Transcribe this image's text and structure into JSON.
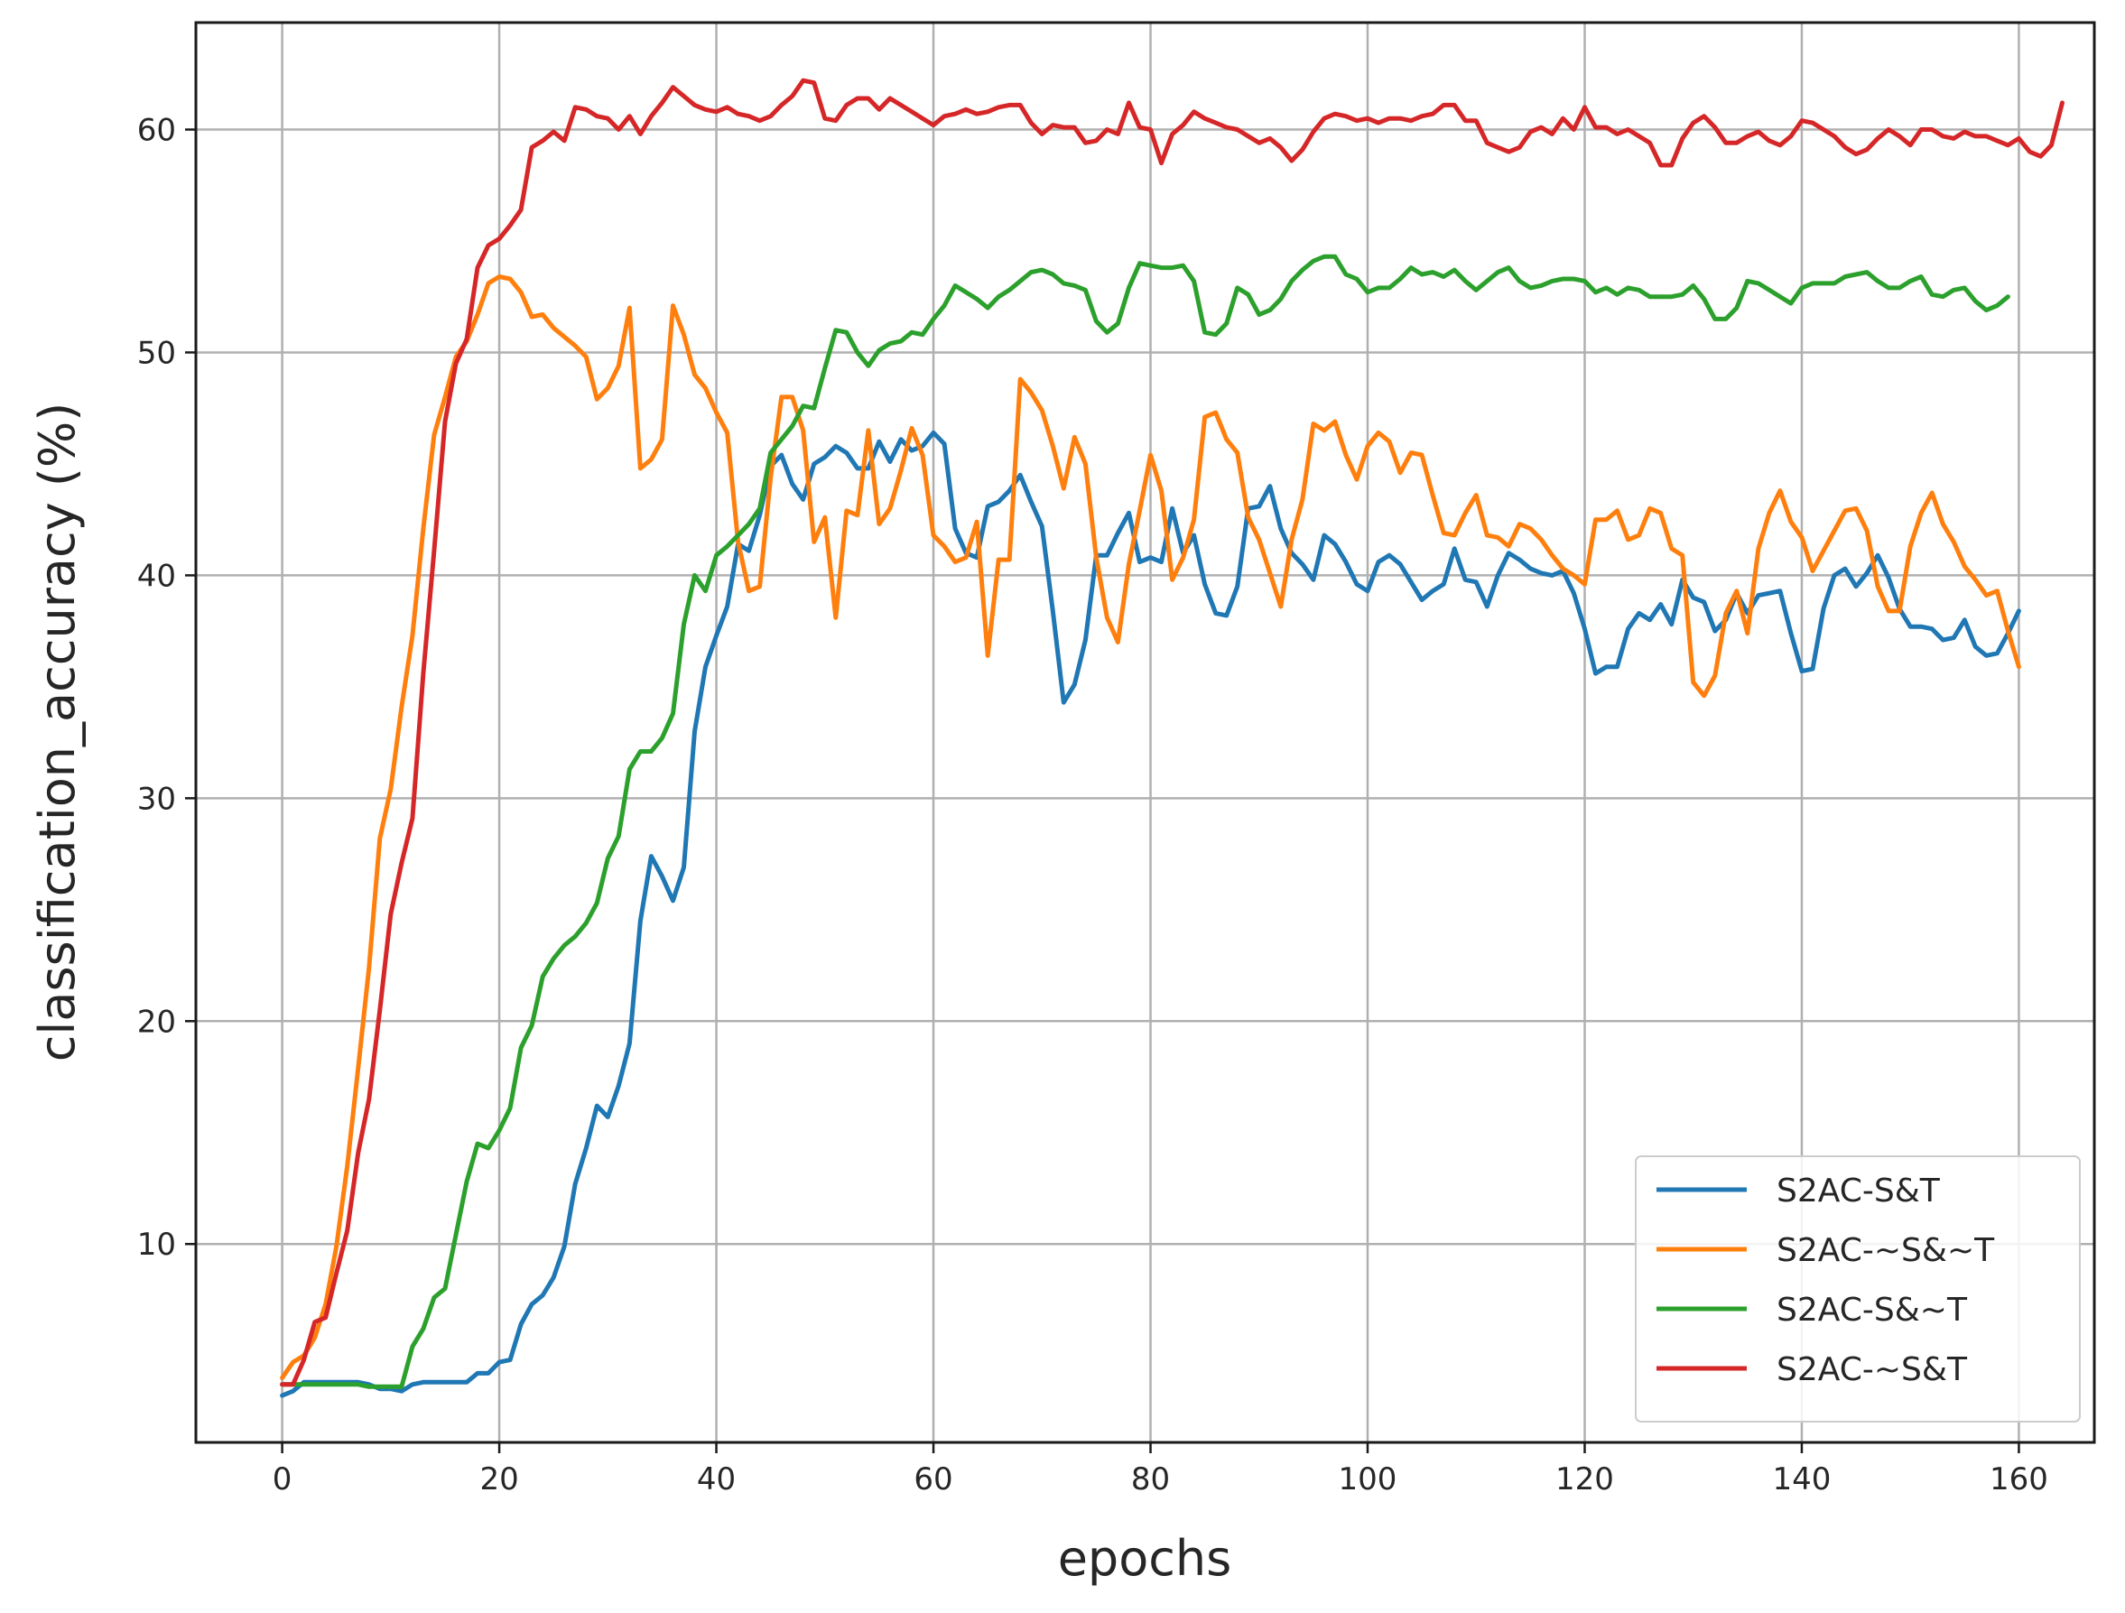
{
  "chart_data": {
    "type": "line",
    "title": "",
    "xlabel": "epochs",
    "ylabel": "classification_accuracy (%)",
    "xlim": [
      -7.95,
      166.95
    ],
    "ylim": [
      1.1,
      64.8
    ],
    "xticks": [
      0,
      20,
      40,
      60,
      80,
      100,
      120,
      140,
      160
    ],
    "yticks": [
      10,
      20,
      30,
      40,
      50,
      60
    ],
    "grid": true,
    "legend_position": "lower-right",
    "series": [
      {
        "name": "S2AC-S&T",
        "color": "#1f77b4",
        "values": [
          3.2,
          3.4,
          3.8,
          3.8,
          3.8,
          3.8,
          3.8,
          3.8,
          3.7,
          3.5,
          3.5,
          3.4,
          3.7,
          3.8,
          3.8,
          3.8,
          3.8,
          3.8,
          4.2,
          4.2,
          4.7,
          4.8,
          6.4,
          7.3,
          7.7,
          8.5,
          9.9,
          12.7,
          14.3,
          16.2,
          15.7,
          17.1,
          19.0,
          24.5,
          27.4,
          26.5,
          25.4,
          26.9,
          33.0,
          35.9,
          37.3,
          38.6,
          41.4,
          41.1,
          42.7,
          44.9,
          45.4,
          44.1,
          43.4,
          45.0,
          45.3,
          45.8,
          45.5,
          44.8,
          44.8,
          46.0,
          45.1,
          46.1,
          45.6,
          45.8,
          46.4,
          45.9,
          42.1,
          41.0,
          40.8,
          43.1,
          43.3,
          43.8,
          44.5,
          43.3,
          42.2,
          38.4,
          34.3,
          35.1,
          37.1,
          40.9,
          40.9,
          41.9,
          42.8,
          40.6,
          40.8,
          40.6,
          43.0,
          41.0,
          41.8,
          39.6,
          38.3,
          38.2,
          39.5,
          43.0,
          43.1,
          44.0,
          42.1,
          41.0,
          40.5,
          39.8,
          41.8,
          41.4,
          40.6,
          39.6,
          39.3,
          40.6,
          40.9,
          40.5,
          39.7,
          38.9,
          39.3,
          39.6,
          41.2,
          39.8,
          39.7,
          38.6,
          40.0,
          41.0,
          40.7,
          40.3,
          40.1,
          40.0,
          40.2,
          39.2,
          37.6,
          35.6,
          35.9,
          35.9,
          37.6,
          38.3,
          38.0,
          38.7,
          37.8,
          39.8,
          39.0,
          38.8,
          37.5,
          38.0,
          39.2,
          38.3,
          39.1,
          39.2,
          39.3,
          37.4,
          35.7,
          35.8,
          38.5,
          40.0,
          40.3,
          39.5,
          40.1,
          40.9,
          39.9,
          38.5,
          37.7,
          37.7,
          37.6,
          37.1,
          37.2,
          38.0,
          36.8,
          36.4,
          36.5,
          37.4,
          38.4
        ]
      },
      {
        "name": "S2AC-~S&~T",
        "color": "#ff7f0e",
        "values": [
          4.0,
          4.7,
          5.0,
          5.8,
          7.3,
          9.9,
          13.5,
          17.9,
          22.4,
          28.2,
          30.4,
          34.1,
          37.3,
          42.1,
          46.3,
          48.0,
          49.8,
          50.5,
          51.7,
          53.1,
          53.4,
          53.3,
          52.7,
          51.6,
          51.7,
          51.1,
          50.7,
          50.3,
          49.8,
          47.9,
          48.4,
          49.4,
          52.0,
          44.8,
          45.2,
          46.1,
          52.1,
          50.8,
          49.0,
          48.4,
          47.3,
          46.4,
          41.5,
          39.3,
          39.5,
          44.4,
          48.0,
          48.0,
          46.5,
          41.5,
          42.6,
          38.1,
          42.9,
          42.7,
          46.5,
          42.3,
          43.0,
          44.7,
          46.6,
          45.4,
          41.8,
          41.3,
          40.6,
          40.8,
          42.4,
          36.4,
          40.7,
          40.7,
          48.8,
          48.2,
          47.4,
          45.8,
          43.9,
          46.2,
          45.0,
          40.8,
          38.1,
          37.0,
          40.5,
          42.9,
          45.4,
          43.8,
          39.8,
          40.8,
          42.5,
          47.1,
          47.3,
          46.1,
          45.5,
          42.6,
          41.6,
          40.1,
          38.6,
          41.6,
          43.4,
          46.8,
          46.5,
          46.9,
          45.4,
          44.3,
          45.8,
          46.4,
          46.0,
          44.6,
          45.5,
          45.4,
          43.6,
          41.9,
          41.8,
          42.8,
          43.6,
          41.8,
          41.7,
          41.3,
          42.3,
          42.1,
          41.6,
          40.9,
          40.3,
          40.0,
          39.6,
          42.5,
          42.5,
          42.9,
          41.6,
          41.8,
          43.0,
          42.8,
          41.2,
          40.9,
          35.2,
          34.6,
          35.5,
          38.3,
          39.3,
          37.4,
          41.2,
          42.8,
          43.8,
          42.4,
          41.7,
          40.2,
          41.1,
          42.0,
          42.9,
          43.0,
          42.0,
          39.5,
          38.4,
          38.4,
          41.3,
          42.8,
          43.7,
          42.3,
          41.5,
          40.4,
          39.8,
          39.1,
          39.3,
          37.5,
          35.9
        ]
      },
      {
        "name": "S2AC-S&~T",
        "color": "#2ca02c",
        "values": [
          3.7,
          3.7,
          3.7,
          3.7,
          3.7,
          3.7,
          3.7,
          3.7,
          3.6,
          3.6,
          3.6,
          3.6,
          5.4,
          6.2,
          7.6,
          8.0,
          10.4,
          12.8,
          14.5,
          14.3,
          15.1,
          16.1,
          18.8,
          19.8,
          22.0,
          22.8,
          23.4,
          23.8,
          24.4,
          25.3,
          27.3,
          28.3,
          31.3,
          32.1,
          32.1,
          32.7,
          33.8,
          37.8,
          40.0,
          39.3,
          40.9,
          41.3,
          41.8,
          42.3,
          43.0,
          45.5,
          46.1,
          46.7,
          47.6,
          47.5,
          49.3,
          51.0,
          50.9,
          50.0,
          49.4,
          50.1,
          50.4,
          50.5,
          50.9,
          50.8,
          51.5,
          52.1,
          53.0,
          52.7,
          52.4,
          52.0,
          52.5,
          52.8,
          53.2,
          53.6,
          53.7,
          53.5,
          53.1,
          53.0,
          52.8,
          51.4,
          50.9,
          51.3,
          52.9,
          54.0,
          53.9,
          53.8,
          53.8,
          53.9,
          53.2,
          50.9,
          50.8,
          51.3,
          52.9,
          52.6,
          51.7,
          51.9,
          52.4,
          53.2,
          53.7,
          54.1,
          54.3,
          54.3,
          53.5,
          53.3,
          52.7,
          52.9,
          52.9,
          53.3,
          53.8,
          53.5,
          53.6,
          53.4,
          53.7,
          53.2,
          52.8,
          53.2,
          53.6,
          53.8,
          53.2,
          52.9,
          53.0,
          53.2,
          53.3,
          53.3,
          53.2,
          52.7,
          52.9,
          52.6,
          52.9,
          52.8,
          52.5,
          52.5,
          52.5,
          52.6,
          53.0,
          52.4,
          51.5,
          51.5,
          52.0,
          53.2,
          53.1,
          52.8,
          52.5,
          52.2,
          52.9,
          53.1,
          53.1,
          53.1,
          53.4,
          53.5,
          53.6,
          53.2,
          52.9,
          52.9,
          53.2,
          53.4,
          52.6,
          52.5,
          52.8,
          52.9,
          52.3,
          51.9,
          52.1,
          52.5
        ]
      },
      {
        "name": "S2AC-~S&T",
        "color": "#d62728",
        "values": [
          3.7,
          3.7,
          4.8,
          6.5,
          6.7,
          8.7,
          10.6,
          14.1,
          16.5,
          20.5,
          24.8,
          27.1,
          29.1,
          35.6,
          41.1,
          46.9,
          49.5,
          50.6,
          53.8,
          54.8,
          55.1,
          55.7,
          56.4,
          59.2,
          59.5,
          59.9,
          59.5,
          61.0,
          60.9,
          60.6,
          60.5,
          60.0,
          60.6,
          59.8,
          60.6,
          61.2,
          61.9,
          61.5,
          61.1,
          60.9,
          60.8,
          61.0,
          60.7,
          60.6,
          60.4,
          60.6,
          61.1,
          61.5,
          62.2,
          62.1,
          60.5,
          60.4,
          61.1,
          61.4,
          61.4,
          60.9,
          61.4,
          61.1,
          60.8,
          60.5,
          60.2,
          60.6,
          60.7,
          60.9,
          60.7,
          60.8,
          61.0,
          61.1,
          61.1,
          60.3,
          59.8,
          60.2,
          60.1,
          60.1,
          59.4,
          59.5,
          60.0,
          59.8,
          61.2,
          60.1,
          60.0,
          58.5,
          59.8,
          60.2,
          60.8,
          60.5,
          60.3,
          60.1,
          60.0,
          59.7,
          59.4,
          59.6,
          59.2,
          58.6,
          59.1,
          59.9,
          60.5,
          60.7,
          60.6,
          60.4,
          60.5,
          60.3,
          60.5,
          60.5,
          60.4,
          60.6,
          60.7,
          61.1,
          61.1,
          60.4,
          60.4,
          59.4,
          59.2,
          59.0,
          59.2,
          59.9,
          60.1,
          59.8,
          60.5,
          60.0,
          61.0,
          60.1,
          60.1,
          59.8,
          60.0,
          59.7,
          59.4,
          58.4,
          58.4,
          59.6,
          60.3,
          60.6,
          60.1,
          59.4,
          59.4,
          59.7,
          59.9,
          59.5,
          59.3,
          59.7,
          60.4,
          60.3,
          60.0,
          59.7,
          59.2,
          58.9,
          59.1,
          59.6,
          60.0,
          59.7,
          59.3,
          60.0,
          60.0,
          59.7,
          59.6,
          59.9,
          59.7,
          59.7,
          59.5,
          59.3,
          59.6,
          59.0,
          58.8,
          59.3,
          61.2
        ]
      }
    ]
  }
}
